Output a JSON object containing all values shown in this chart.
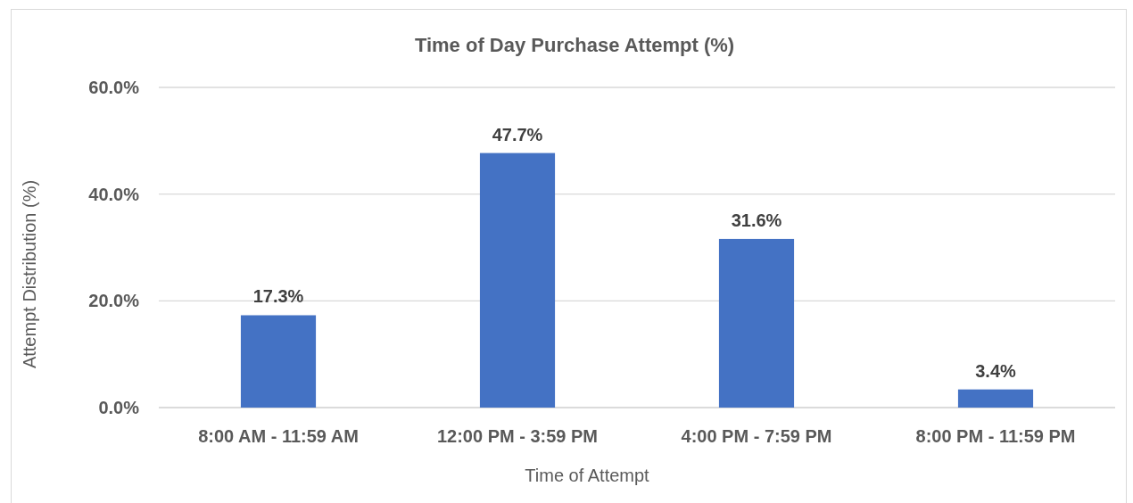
{
  "chart_data": {
    "type": "bar",
    "title": "Time of Day Purchase Attempt (%)",
    "xlabel": "Time of Attempt",
    "ylabel": "Attempt Distribution (%)",
    "categories": [
      "8:00 AM - 11:59 AM",
      "12:00 PM - 3:59 PM",
      "4:00 PM - 7:59 PM",
      "8:00 PM - 11:59 PM"
    ],
    "values": [
      17.3,
      47.7,
      31.6,
      3.4
    ],
    "value_labels": [
      "17.3%",
      "47.7%",
      "31.6%",
      "3.4%"
    ],
    "color": "#4472c4",
    "ylim": [
      0,
      60
    ],
    "yticks": [
      {
        "value": 0,
        "label": "0.0%"
      },
      {
        "value": 20,
        "label": "20.0%"
      },
      {
        "value": 40,
        "label": "40.0%"
      },
      {
        "value": 60,
        "label": "60.0%"
      }
    ],
    "grid": "y"
  }
}
